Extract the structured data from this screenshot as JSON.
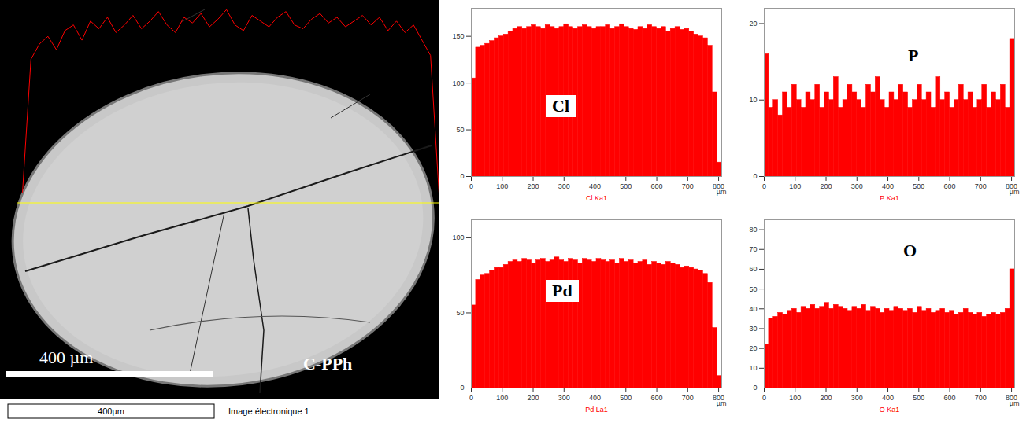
{
  "chart_data": [
    {
      "type": "image",
      "title": "C-PPh",
      "scale_bar_label": "400 µm",
      "scale_label": "400µm",
      "caption": "Image électronique 1",
      "profile": {
        "color": "#ff0000",
        "values": [
          0,
          70,
          78,
          82,
          75,
          85,
          88,
          80,
          90,
          86,
          92,
          84,
          88,
          93,
          86,
          90,
          95,
          88,
          84,
          92,
          89,
          94,
          87,
          91,
          96,
          88,
          85,
          93,
          90,
          87,
          92,
          95,
          88,
          86,
          91,
          94,
          89,
          92,
          87,
          90,
          93,
          88,
          92,
          85,
          90,
          84,
          88,
          80,
          72,
          0
        ]
      }
    },
    {
      "type": "histogram",
      "title": "Cl",
      "xlabel": "Cl Ka1",
      "x_unit": "µm",
      "color": "#ff0000",
      "bins": [
        0,
        15,
        30,
        45,
        60,
        75,
        90,
        105,
        120,
        135,
        150,
        165,
        180,
        195,
        210,
        225,
        240,
        255,
        270,
        285,
        300,
        315,
        330,
        345,
        360,
        375,
        390,
        405,
        420,
        435,
        450,
        465,
        480,
        495,
        510,
        525,
        540,
        555,
        570,
        585,
        600,
        615,
        630,
        645,
        660,
        675,
        690,
        705,
        720,
        735,
        750,
        765,
        780,
        795,
        810
      ],
      "values": [
        105,
        138,
        140,
        142,
        145,
        148,
        150,
        152,
        155,
        158,
        160,
        158,
        160,
        162,
        160,
        158,
        162,
        160,
        158,
        160,
        163,
        160,
        158,
        160,
        162,
        160,
        158,
        160,
        160,
        162,
        158,
        160,
        163,
        160,
        158,
        157,
        160,
        158,
        162,
        160,
        158,
        160,
        155,
        158,
        160,
        157,
        158,
        155,
        152,
        150,
        148,
        140,
        90,
        15
      ],
      "xlim": [
        0,
        810
      ],
      "xticks": [
        0,
        100,
        200,
        300,
        400,
        500,
        600,
        700,
        800
      ],
      "ylim": [
        0,
        180
      ],
      "yticks": [
        0,
        50,
        100,
        150
      ]
    },
    {
      "type": "histogram",
      "title": "P",
      "xlabel": "P Ka1",
      "x_unit": "µm",
      "color": "#ff0000",
      "bins": [
        0,
        15,
        30,
        45,
        60,
        75,
        90,
        105,
        120,
        135,
        150,
        165,
        180,
        195,
        210,
        225,
        240,
        255,
        270,
        285,
        300,
        315,
        330,
        345,
        360,
        375,
        390,
        405,
        420,
        435,
        450,
        465,
        480,
        495,
        510,
        525,
        540,
        555,
        570,
        585,
        600,
        615,
        630,
        645,
        660,
        675,
        690,
        705,
        720,
        735,
        750,
        765,
        780,
        795,
        810
      ],
      "values": [
        16,
        9,
        10,
        8,
        11,
        9,
        12,
        10,
        9,
        11,
        10,
        12,
        9,
        11,
        10,
        13,
        9,
        10,
        12,
        11,
        10,
        9,
        12,
        11,
        13,
        10,
        9,
        11,
        10,
        12,
        11,
        9,
        10,
        12,
        10,
        11,
        9,
        13,
        10,
        11,
        9,
        10,
        12,
        10,
        11,
        9,
        10,
        12,
        9,
        11,
        10,
        12,
        9,
        18
      ],
      "xlim": [
        0,
        810
      ],
      "xticks": [
        0,
        100,
        200,
        300,
        400,
        500,
        600,
        700,
        800
      ],
      "ylim": [
        0,
        22
      ],
      "yticks": [
        0,
        10,
        20
      ]
    },
    {
      "type": "histogram",
      "title": "Pd",
      "xlabel": "Pd La1",
      "x_unit": "µm",
      "color": "#ff0000",
      "bins": [
        0,
        15,
        30,
        45,
        60,
        75,
        90,
        105,
        120,
        135,
        150,
        165,
        180,
        195,
        210,
        225,
        240,
        255,
        270,
        285,
        300,
        315,
        330,
        345,
        360,
        375,
        390,
        405,
        420,
        435,
        450,
        465,
        480,
        495,
        510,
        525,
        540,
        555,
        570,
        585,
        600,
        615,
        630,
        645,
        660,
        675,
        690,
        705,
        720,
        735,
        750,
        765,
        780,
        795,
        810
      ],
      "values": [
        55,
        72,
        75,
        76,
        78,
        80,
        80,
        82,
        84,
        85,
        84,
        86,
        85,
        83,
        85,
        86,
        84,
        85,
        87,
        85,
        84,
        86,
        85,
        83,
        86,
        85,
        84,
        86,
        85,
        84,
        85,
        83,
        86,
        84,
        85,
        83,
        84,
        85,
        82,
        84,
        83,
        82,
        84,
        83,
        82,
        80,
        81,
        80,
        79,
        78,
        76,
        70,
        40,
        8
      ],
      "xlim": [
        0,
        810
      ],
      "xticks": [
        0,
        100,
        200,
        300,
        400,
        500,
        600,
        700,
        800
      ],
      "ylim": [
        0,
        112
      ],
      "yticks": [
        0,
        50,
        100
      ]
    },
    {
      "type": "histogram",
      "title": "O",
      "xlabel": "O Ka1",
      "x_unit": "µm",
      "color": "#ff0000",
      "bins": [
        0,
        15,
        30,
        45,
        60,
        75,
        90,
        105,
        120,
        135,
        150,
        165,
        180,
        195,
        210,
        225,
        240,
        255,
        270,
        285,
        300,
        315,
        330,
        345,
        360,
        375,
        390,
        405,
        420,
        435,
        450,
        465,
        480,
        495,
        510,
        525,
        540,
        555,
        570,
        585,
        600,
        615,
        630,
        645,
        660,
        675,
        690,
        705,
        720,
        735,
        750,
        765,
        780,
        795,
        810
      ],
      "values": [
        22,
        35,
        36,
        38,
        37,
        39,
        40,
        38,
        41,
        40,
        42,
        40,
        41,
        43,
        40,
        42,
        41,
        40,
        39,
        41,
        40,
        42,
        39,
        41,
        40,
        38,
        40,
        39,
        41,
        40,
        39,
        40,
        38,
        41,
        39,
        40,
        38,
        39,
        40,
        38,
        39,
        37,
        38,
        40,
        38,
        37,
        38,
        36,
        37,
        38,
        37,
        38,
        40,
        60
      ],
      "xlim": [
        0,
        810
      ],
      "xticks": [
        0,
        100,
        200,
        300,
        400,
        500,
        600,
        700,
        800
      ],
      "ylim": [
        0,
        85
      ],
      "yticks": [
        0,
        10,
        20,
        30,
        40,
        50,
        60,
        70,
        80
      ]
    }
  ]
}
